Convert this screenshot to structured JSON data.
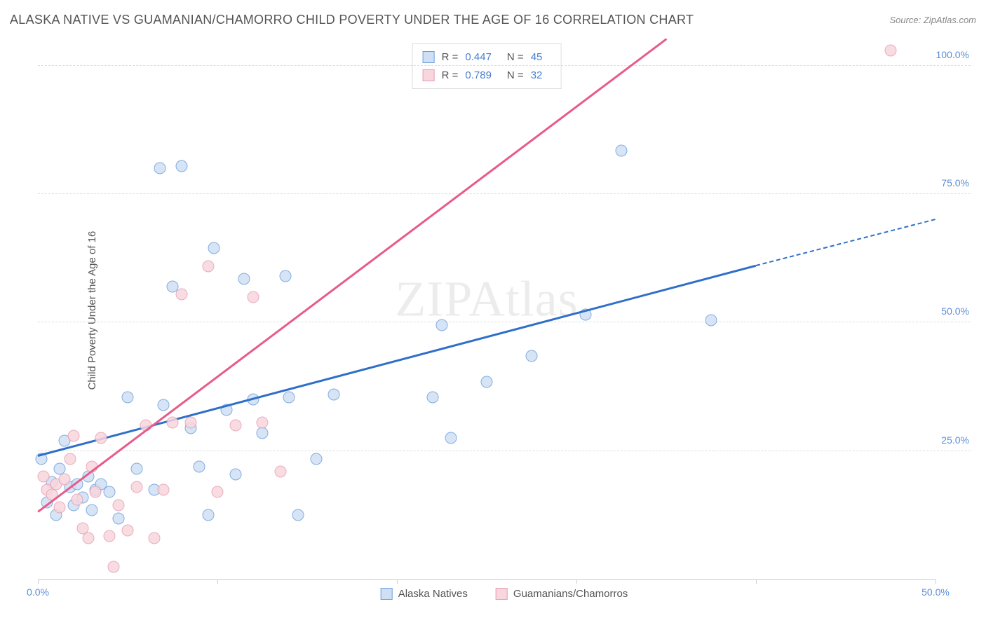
{
  "title": "ALASKA NATIVE VS GUAMANIAN/CHAMORRO CHILD POVERTY UNDER THE AGE OF 16 CORRELATION CHART",
  "source": "Source: ZipAtlas.com",
  "watermark": "ZIPAtlas",
  "y_axis_title": "Child Poverty Under the Age of 16",
  "chart": {
    "type": "scatter",
    "xlim": [
      0,
      50
    ],
    "ylim": [
      0,
      105
    ],
    "x_ticks": [
      0,
      10,
      20,
      30,
      40,
      50
    ],
    "x_tick_labels": [
      "0.0%",
      "",
      "",
      "",
      "",
      "50.0%"
    ],
    "y_ticks": [
      25,
      50,
      75,
      100
    ],
    "y_tick_labels": [
      "25.0%",
      "50.0%",
      "75.0%",
      "100.0%"
    ],
    "background_color": "#ffffff",
    "grid_color": "#dddddd",
    "axis_label_color": "#5b8dd6",
    "marker_radius": 8.5,
    "series": [
      {
        "name": "Alaska Natives",
        "fill": "#cfe0f5",
        "stroke": "#6d9fdb",
        "line_color": "#2f6fc9",
        "R": "0.447",
        "N": "45",
        "trend": {
          "x1": 0,
          "y1": 24,
          "x2": 40,
          "y2": 61,
          "dash_x2": 50,
          "dash_y2": 70
        },
        "points": [
          [
            0.2,
            23.5
          ],
          [
            0.5,
            15
          ],
          [
            0.8,
            19
          ],
          [
            1.0,
            12.5
          ],
          [
            1.2,
            21.5
          ],
          [
            1.5,
            27
          ],
          [
            1.8,
            18
          ],
          [
            2.0,
            14.5
          ],
          [
            2.2,
            18.5
          ],
          [
            2.5,
            16
          ],
          [
            2.8,
            20
          ],
          [
            3.0,
            13.5
          ],
          [
            3.2,
            17.5
          ],
          [
            3.5,
            18.5
          ],
          [
            4.0,
            17
          ],
          [
            4.5,
            11.8
          ],
          [
            5.0,
            35.5
          ],
          [
            5.5,
            21.5
          ],
          [
            6.5,
            17.5
          ],
          [
            6.8,
            80
          ],
          [
            7.0,
            34
          ],
          [
            7.5,
            57
          ],
          [
            8.0,
            80.5
          ],
          [
            8.5,
            29.5
          ],
          [
            9.0,
            22
          ],
          [
            9.5,
            12.5
          ],
          [
            9.8,
            64.5
          ],
          [
            10.5,
            33
          ],
          [
            11.0,
            20.5
          ],
          [
            11.5,
            58.5
          ],
          [
            12.0,
            35
          ],
          [
            12.5,
            28.5
          ],
          [
            13.8,
            59
          ],
          [
            14.0,
            35.5
          ],
          [
            14.5,
            12.5
          ],
          [
            15.5,
            23.5
          ],
          [
            16.5,
            36
          ],
          [
            22.0,
            35.5
          ],
          [
            22.5,
            49.5
          ],
          [
            23.0,
            27.5
          ],
          [
            25.0,
            38.5
          ],
          [
            27.5,
            43.5
          ],
          [
            30.5,
            51.5
          ],
          [
            32.5,
            83.5
          ],
          [
            37.5,
            50.5
          ]
        ]
      },
      {
        "name": "Guamanians/Chamorros",
        "fill": "#f7d6de",
        "stroke": "#e59fb3",
        "line_color": "#e85a8a",
        "R": "0.789",
        "N": "32",
        "trend": {
          "x1": 0,
          "y1": 13,
          "x2": 35,
          "y2": 105
        },
        "points": [
          [
            0.3,
            20
          ],
          [
            0.5,
            17.5
          ],
          [
            0.8,
            16.5
          ],
          [
            1.0,
            18.5
          ],
          [
            1.2,
            14
          ],
          [
            1.5,
            19.5
          ],
          [
            1.8,
            23.5
          ],
          [
            2.0,
            28
          ],
          [
            2.2,
            15.5
          ],
          [
            2.5,
            10
          ],
          [
            2.8,
            8
          ],
          [
            3.0,
            22
          ],
          [
            3.2,
            17
          ],
          [
            3.5,
            27.5
          ],
          [
            4.0,
            8.5
          ],
          [
            4.2,
            2.5
          ],
          [
            4.5,
            14.5
          ],
          [
            5.0,
            9.5
          ],
          [
            5.5,
            18
          ],
          [
            6.0,
            30
          ],
          [
            6.5,
            8
          ],
          [
            7.0,
            17.5
          ],
          [
            7.5,
            30.5
          ],
          [
            8.0,
            55.5
          ],
          [
            8.5,
            30.5
          ],
          [
            9.5,
            61
          ],
          [
            10.0,
            17
          ],
          [
            11.0,
            30
          ],
          [
            12.0,
            55
          ],
          [
            12.5,
            30.5
          ],
          [
            13.5,
            21
          ],
          [
            47.5,
            103
          ]
        ]
      }
    ]
  },
  "legend_bottom": {
    "items": [
      "Alaska Natives",
      "Guamanians/Chamorros"
    ]
  }
}
